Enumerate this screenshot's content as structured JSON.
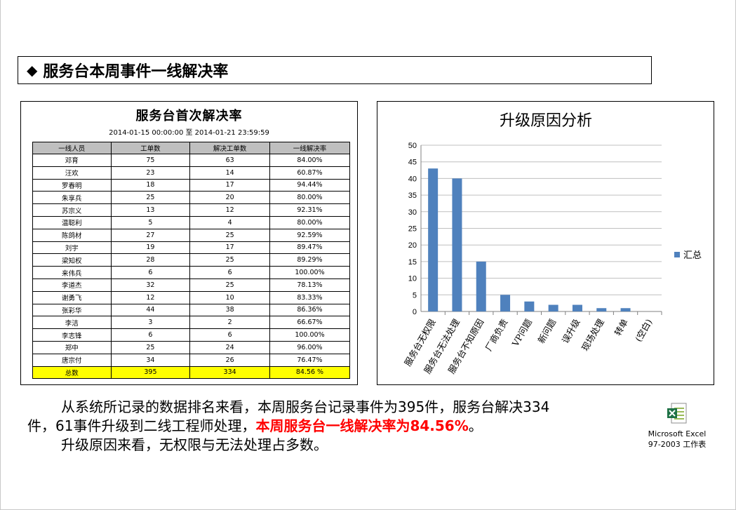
{
  "title": "服务台本周事件一线解决率",
  "table": {
    "title": "服务台首次解决率",
    "range": "2014-01-15 00:00:00  至  2014-01-21 23:59:59",
    "headers": [
      "一线人员",
      "工单数",
      "解决工单数",
      "一线解决率"
    ],
    "rows": [
      [
        "邓育",
        "75",
        "63",
        "84.00%"
      ],
      [
        "汪欢",
        "23",
        "14",
        "60.87%"
      ],
      [
        "罗春明",
        "18",
        "17",
        "94.44%"
      ],
      [
        "朱享兵",
        "25",
        "20",
        "80.00%"
      ],
      [
        "苏宗义",
        "13",
        "12",
        "92.31%"
      ],
      [
        "温聪利",
        "5",
        "4",
        "80.00%"
      ],
      [
        "陈鸽材",
        "27",
        "25",
        "92.59%"
      ],
      [
        "刘宇",
        "19",
        "17",
        "89.47%"
      ],
      [
        "梁知权",
        "28",
        "25",
        "89.29%"
      ],
      [
        "来伟兵",
        "6",
        "6",
        "100.00%"
      ],
      [
        "李道杰",
        "32",
        "25",
        "78.13%"
      ],
      [
        "谢勇飞",
        "12",
        "10",
        "83.33%"
      ],
      [
        "张彩华",
        "44",
        "38",
        "86.36%"
      ],
      [
        "李洁",
        "3",
        "2",
        "66.67%"
      ],
      [
        "李志锋",
        "6",
        "6",
        "100.00%"
      ],
      [
        "郑中",
        "25",
        "24",
        "96.00%"
      ],
      [
        "唐宗付",
        "34",
        "26",
        "76.47%"
      ]
    ],
    "total": [
      "总数",
      "395",
      "334",
      "84.56 %"
    ]
  },
  "chart_data": {
    "type": "bar",
    "title": "升级原因分析",
    "categories": [
      "服务台无权限",
      "服务台无法处理",
      "服务台不知原因",
      "厂商负责",
      "VP问题",
      "新问题",
      "误升级",
      "现场处理",
      "转单",
      "(空白)"
    ],
    "series": [
      {
        "name": "汇总",
        "values": [
          43,
          40,
          15,
          5,
          3,
          2,
          2,
          1,
          1,
          0
        ]
      }
    ],
    "ylim": [
      0,
      50
    ],
    "yticks": [
      0,
      5,
      10,
      15,
      20,
      25,
      30,
      35,
      40,
      45,
      50
    ],
    "grid": true,
    "legend": "right",
    "bar_color": "#4f81bd"
  },
  "text": {
    "p1": "从系统所记录的数据排名来看，本周服务台记录事件为395件，服务台解决334",
    "p2a": "件，61事件升级到二线工程师处理，",
    "p2b": "本周服务台一线解决率为84.56%",
    "p2c": "。",
    "p3": "升级原因来看，无权限与无法处理占多数。"
  },
  "attachment": {
    "line1": "Microsoft Excel",
    "line2": "97-2003 工作表",
    "icon": "excel-icon"
  }
}
